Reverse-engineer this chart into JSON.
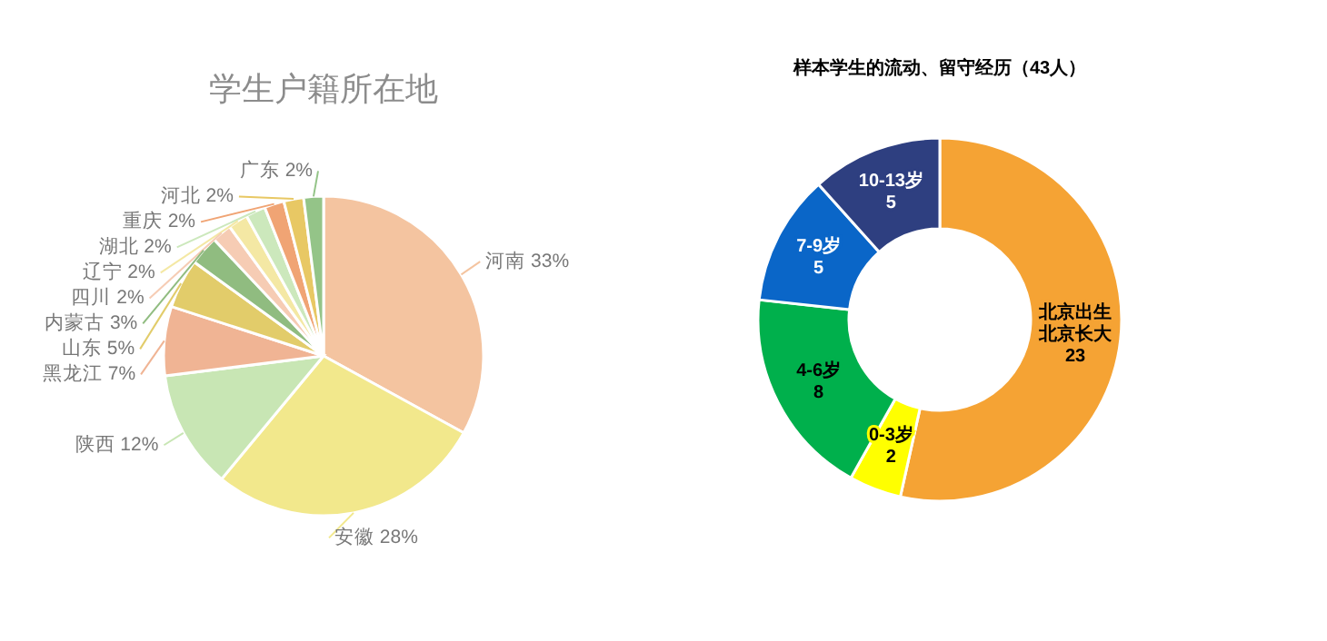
{
  "chart_data": [
    {
      "type": "pie",
      "title": "学生户籍所在地",
      "categories": [
        "河南",
        "安徽",
        "陕西",
        "黑龙江",
        "山东",
        "内蒙古",
        "四川",
        "辽宁",
        "湖北",
        "重庆",
        "河北",
        "广东"
      ],
      "values": [
        33,
        28,
        12,
        7,
        5,
        3,
        2,
        2,
        2,
        2,
        2,
        2
      ],
      "colors": [
        "#f4c4a0",
        "#f2e88c",
        "#c8e6b4",
        "#f0b494",
        "#e2cc6a",
        "#90bc80",
        "#f6ccb4",
        "#f4e8a4",
        "#cce8bc",
        "#f0a474",
        "#e8c864",
        "#94c488"
      ],
      "value_labels": [
        "33%",
        "28%",
        "12%",
        "7%",
        "5%",
        "3%",
        "2%",
        "2%",
        "2%",
        "2%",
        "2%",
        "2%"
      ]
    },
    {
      "type": "donut",
      "title": "样本学生的流动、留守经历（43人）",
      "categories": [
        "北京出生北京长大",
        "0-3岁",
        "4-6岁",
        "7-9岁",
        "10-13岁"
      ],
      "values": [
        23,
        2,
        8,
        5,
        5
      ],
      "colors": [
        "#f5a334",
        "#ffff00",
        "#00b04c",
        "#0a66c8",
        "#2e3f80"
      ],
      "data_labels": true
    }
  ]
}
